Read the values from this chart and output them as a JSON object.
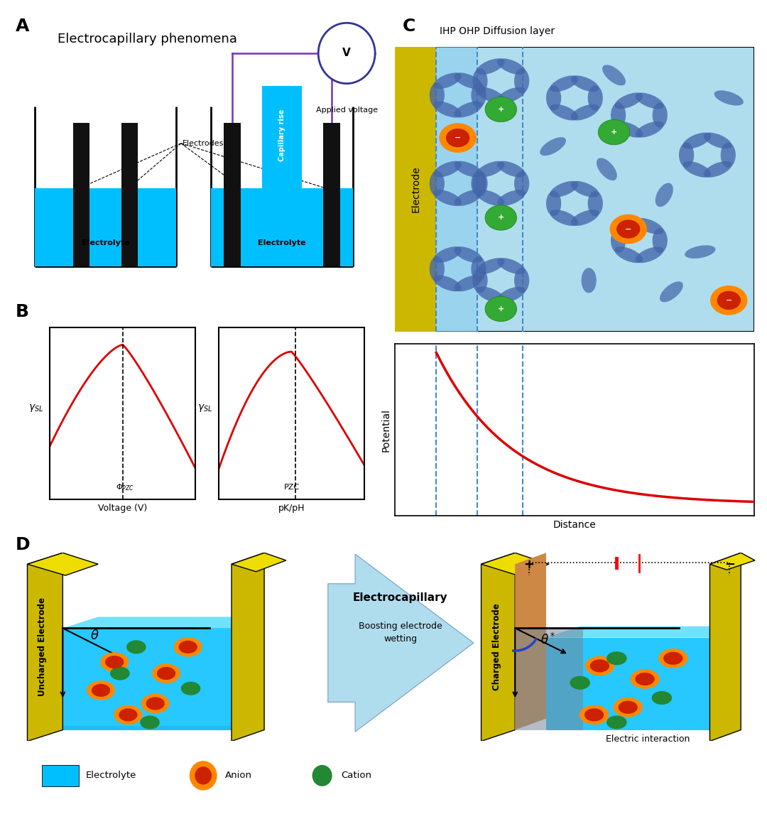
{
  "fig_width": 10.8,
  "fig_height": 11.53,
  "bg_color": "#ffffff",
  "cyan_color": "#00bfff",
  "yellow_elec": "#ccb800",
  "yellow_bright": "#eedd00",
  "red_curve_color": "#dd0000",
  "blue_dashed_color": "#4488cc",
  "green_ion_color": "#33aa33",
  "purple_color": "#7733bb",
  "panel_A_label": "A",
  "panel_B_label": "B",
  "panel_C_label": "C",
  "panel_D_label": "D",
  "title_A": "Electrocapillary phenomena",
  "label_electrodes": "Electrodes",
  "label_electrolyte": "Electrolyte",
  "label_applied_voltage": "Applied voltage",
  "label_capillary_rise": "Capillary rise",
  "label_IHP_OHP_Diffusion": "IHP OHP Diffusion layer",
  "label_Electrode": "Electrode",
  "label_Potential": "Potential",
  "label_Distance": "Distance",
  "label_voltage_V": "Voltage (V)",
  "label_pK_pH": "pK/pH",
  "label_V": "V",
  "label_uncharged": "Uncharged Electrode",
  "label_charged": "Charged Electrode",
  "label_electrocapillary": "Electrocapillary",
  "label_boosting": "Boosting electrode\nwetting",
  "label_electric_interaction": "Electric interaction",
  "legend_electrolyte": "Electrolyte",
  "legend_anion": "Anion",
  "legend_cation": "Cation"
}
